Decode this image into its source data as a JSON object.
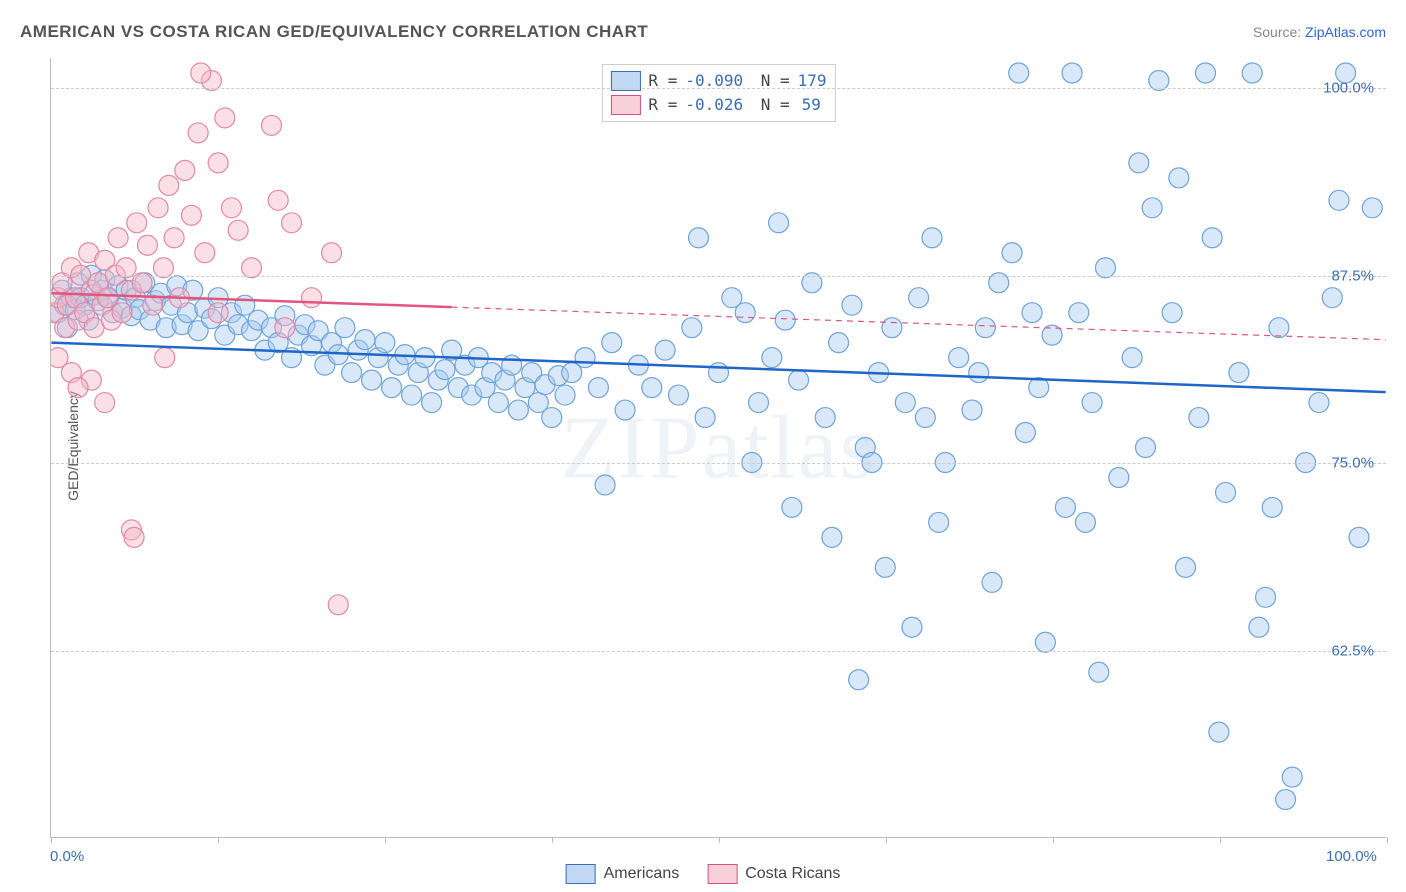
{
  "title": "AMERICAN VS COSTA RICAN GED/EQUIVALENCY CORRELATION CHART",
  "source_label": "Source:",
  "source_name": "ZipAtlas.com",
  "watermark": "ZIPatlas",
  "ylabel": "GED/Equivalency",
  "chart": {
    "type": "scatter",
    "background_color": "#ffffff",
    "grid_color": "#cccccc",
    "axis_color": "#bbbbbb",
    "xlim": [
      0,
      100
    ],
    "ylim": [
      50,
      102
    ],
    "x_ticks": [
      0,
      12.5,
      25,
      37.5,
      50,
      62.5,
      75,
      87.5,
      100
    ],
    "x_tick_labels_shown": {
      "0": "0.0%",
      "100": "100.0%"
    },
    "y_ticks": [
      62.5,
      75.0,
      87.5,
      100.0
    ],
    "y_tick_labels": [
      "62.5%",
      "75.0%",
      "87.5%",
      "100.0%"
    ],
    "marker_radius": 10,
    "marker_opacity": 0.45,
    "trend_line_width": 2.5,
    "series": [
      {
        "name": "Americans",
        "color_fill": "#a9cdef",
        "color_stroke": "#6fa3d9",
        "trend_color": "#1f66c9",
        "R": "-0.090",
        "N": "179",
        "trend": {
          "x0": 0,
          "y0": 83.0,
          "x1": 100,
          "y1": 79.7,
          "dash_after_x": null
        },
        "points": [
          [
            0.5,
            85.0
          ],
          [
            0.8,
            86.5
          ],
          [
            1.0,
            85.5
          ],
          [
            1.2,
            84.0
          ],
          [
            1.5,
            86.0
          ],
          [
            1.8,
            85.2
          ],
          [
            2.0,
            87.0
          ],
          [
            2.2,
            86.0
          ],
          [
            2.5,
            85.5
          ],
          [
            2.8,
            84.5
          ],
          [
            3.0,
            87.5
          ],
          [
            3.2,
            86.2
          ],
          [
            3.5,
            85.8
          ],
          [
            3.8,
            86.5
          ],
          [
            4.0,
            87.2
          ],
          [
            4.3,
            86.0
          ],
          [
            4.6,
            85.0
          ],
          [
            5.0,
            86.8
          ],
          [
            5.3,
            85.3
          ],
          [
            5.6,
            86.5
          ],
          [
            6.0,
            84.8
          ],
          [
            6.3,
            86.0
          ],
          [
            6.6,
            85.2
          ],
          [
            7.0,
            87.0
          ],
          [
            7.4,
            84.5
          ],
          [
            7.8,
            85.8
          ],
          [
            8.2,
            86.3
          ],
          [
            8.6,
            84.0
          ],
          [
            9.0,
            85.5
          ],
          [
            9.4,
            86.8
          ],
          [
            9.8,
            84.2
          ],
          [
            10.2,
            85.0
          ],
          [
            10.6,
            86.5
          ],
          [
            11.0,
            83.8
          ],
          [
            11.5,
            85.3
          ],
          [
            12.0,
            84.6
          ],
          [
            12.5,
            86.0
          ],
          [
            13.0,
            83.5
          ],
          [
            13.5,
            85.0
          ],
          [
            14.0,
            84.2
          ],
          [
            14.5,
            85.5
          ],
          [
            15.0,
            83.8
          ],
          [
            15.5,
            84.5
          ],
          [
            16.0,
            82.5
          ],
          [
            16.5,
            84.0
          ],
          [
            17.0,
            83.0
          ],
          [
            17.5,
            84.8
          ],
          [
            18.0,
            82.0
          ],
          [
            18.5,
            83.5
          ],
          [
            19.0,
            84.2
          ],
          [
            19.5,
            82.8
          ],
          [
            20.0,
            83.8
          ],
          [
            20.5,
            81.5
          ],
          [
            21.0,
            83.0
          ],
          [
            21.5,
            82.2
          ],
          [
            22.0,
            84.0
          ],
          [
            22.5,
            81.0
          ],
          [
            23.0,
            82.5
          ],
          [
            23.5,
            83.2
          ],
          [
            24.0,
            80.5
          ],
          [
            24.5,
            82.0
          ],
          [
            25.0,
            83.0
          ],
          [
            25.5,
            80.0
          ],
          [
            26.0,
            81.5
          ],
          [
            26.5,
            82.2
          ],
          [
            27.0,
            79.5
          ],
          [
            27.5,
            81.0
          ],
          [
            28.0,
            82.0
          ],
          [
            28.5,
            79.0
          ],
          [
            29.0,
            80.5
          ],
          [
            29.5,
            81.2
          ],
          [
            30.0,
            82.5
          ],
          [
            30.5,
            80.0
          ],
          [
            31.0,
            81.5
          ],
          [
            31.5,
            79.5
          ],
          [
            32.0,
            82.0
          ],
          [
            32.5,
            80.0
          ],
          [
            33.0,
            81.0
          ],
          [
            33.5,
            79.0
          ],
          [
            34.0,
            80.5
          ],
          [
            34.5,
            81.5
          ],
          [
            35.0,
            78.5
          ],
          [
            35.5,
            80.0
          ],
          [
            36.0,
            81.0
          ],
          [
            36.5,
            79.0
          ],
          [
            37.0,
            80.2
          ],
          [
            37.5,
            78.0
          ],
          [
            38.0,
            80.8
          ],
          [
            38.5,
            79.5
          ],
          [
            39.0,
            81.0
          ],
          [
            40.0,
            82.0
          ],
          [
            41.0,
            80.0
          ],
          [
            42.0,
            83.0
          ],
          [
            43.0,
            78.5
          ],
          [
            44.0,
            81.5
          ],
          [
            45.0,
            80.0
          ],
          [
            46.0,
            82.5
          ],
          [
            47.0,
            79.5
          ],
          [
            48.0,
            84.0
          ],
          [
            49.0,
            78.0
          ],
          [
            41.5,
            73.5
          ],
          [
            50.0,
            81.0
          ],
          [
            51.0,
            86.0
          ],
          [
            52.0,
            85.0
          ],
          [
            53.0,
            79.0
          ],
          [
            54.0,
            82.0
          ],
          [
            55.0,
            84.5
          ],
          [
            56.0,
            80.5
          ],
          [
            57.0,
            87.0
          ],
          [
            58.0,
            78.0
          ],
          [
            59.0,
            83.0
          ],
          [
            60.0,
            85.5
          ],
          [
            61.0,
            76.0
          ],
          [
            62.0,
            81.0
          ],
          [
            63.0,
            84.0
          ],
          [
            64.0,
            79.0
          ],
          [
            65.0,
            86.0
          ],
          [
            66.0,
            90.0
          ],
          [
            67.0,
            75.0
          ],
          [
            68.0,
            82.0
          ],
          [
            69.0,
            78.5
          ],
          [
            70.0,
            84.0
          ],
          [
            71.0,
            87.0
          ],
          [
            72.0,
            89.0
          ],
          [
            73.0,
            77.0
          ],
          [
            74.0,
            80.0
          ],
          [
            75.0,
            83.5
          ],
          [
            76.0,
            72.0
          ],
          [
            77.0,
            85.0
          ],
          [
            78.0,
            79.0
          ],
          [
            79.0,
            88.0
          ],
          [
            80.0,
            74.0
          ],
          [
            81.0,
            82.0
          ],
          [
            82.0,
            76.0
          ],
          [
            83.0,
            100.5
          ],
          [
            84.0,
            85.0
          ],
          [
            85.0,
            68.0
          ],
          [
            86.0,
            78.0
          ],
          [
            87.0,
            90.0
          ],
          [
            88.0,
            73.0
          ],
          [
            89.0,
            81.0
          ],
          [
            90.0,
            101.0
          ],
          [
            91.0,
            66.0
          ],
          [
            92.0,
            84.0
          ],
          [
            93.0,
            54.0
          ],
          [
            94.0,
            75.0
          ],
          [
            95.0,
            79.0
          ],
          [
            96.0,
            86.0
          ],
          [
            97.0,
            101.0
          ],
          [
            98.0,
            70.0
          ],
          [
            60.5,
            60.5
          ],
          [
            54.5,
            91.0
          ],
          [
            72.5,
            101.0
          ],
          [
            76.5,
            101.0
          ],
          [
            81.5,
            95.0
          ],
          [
            84.5,
            94.0
          ],
          [
            87.5,
            57.0
          ],
          [
            90.5,
            64.0
          ],
          [
            92.5,
            52.5
          ],
          [
            96.5,
            92.5
          ],
          [
            62.5,
            68.0
          ],
          [
            64.5,
            64.0
          ],
          [
            66.5,
            71.0
          ],
          [
            70.5,
            67.0
          ],
          [
            74.5,
            63.0
          ],
          [
            78.5,
            61.0
          ],
          [
            82.5,
            92.0
          ],
          [
            86.5,
            101.0
          ],
          [
            91.5,
            72.0
          ],
          [
            99.0,
            92.0
          ],
          [
            48.5,
            90.0
          ],
          [
            52.5,
            75.0
          ],
          [
            55.5,
            72.0
          ],
          [
            58.5,
            70.0
          ],
          [
            61.5,
            75.0
          ],
          [
            65.5,
            78.0
          ],
          [
            69.5,
            81.0
          ],
          [
            73.5,
            85.0
          ],
          [
            77.5,
            71.0
          ]
        ]
      },
      {
        "name": "Costa Ricans",
        "color_fill": "#f5b8c8",
        "color_stroke": "#e389a5",
        "trend_color": "#e0567f",
        "R": "-0.026",
        "N": "59",
        "trend": {
          "x0": 0,
          "y0": 86.3,
          "x1": 100,
          "y1": 83.2,
          "dash_after_x": 30
        },
        "points": [
          [
            0.2,
            85.0
          ],
          [
            0.5,
            86.0
          ],
          [
            0.8,
            87.0
          ],
          [
            1.0,
            84.0
          ],
          [
            1.2,
            85.5
          ],
          [
            1.5,
            88.0
          ],
          [
            1.8,
            86.0
          ],
          [
            2.0,
            84.5
          ],
          [
            2.2,
            87.5
          ],
          [
            2.5,
            85.0
          ],
          [
            2.8,
            89.0
          ],
          [
            3.0,
            86.5
          ],
          [
            3.2,
            84.0
          ],
          [
            3.5,
            87.0
          ],
          [
            3.8,
            85.5
          ],
          [
            4.0,
            88.5
          ],
          [
            4.2,
            86.0
          ],
          [
            4.5,
            84.5
          ],
          [
            4.8,
            87.5
          ],
          [
            5.0,
            90.0
          ],
          [
            5.3,
            85.0
          ],
          [
            5.6,
            88.0
          ],
          [
            6.0,
            86.5
          ],
          [
            6.4,
            91.0
          ],
          [
            6.8,
            87.0
          ],
          [
            7.2,
            89.5
          ],
          [
            7.6,
            85.5
          ],
          [
            8.0,
            92.0
          ],
          [
            8.4,
            88.0
          ],
          [
            8.8,
            93.5
          ],
          [
            9.2,
            90.0
          ],
          [
            9.6,
            86.0
          ],
          [
            10.0,
            94.5
          ],
          [
            10.5,
            91.5
          ],
          [
            11.0,
            97.0
          ],
          [
            11.5,
            89.0
          ],
          [
            12.0,
            100.5
          ],
          [
            12.5,
            95.0
          ],
          [
            13.0,
            98.0
          ],
          [
            13.5,
            92.0
          ],
          [
            14.0,
            90.5
          ],
          [
            15.0,
            88.0
          ],
          [
            16.5,
            97.5
          ],
          [
            17.5,
            84.0
          ],
          [
            18.0,
            91.0
          ],
          [
            19.5,
            86.0
          ],
          [
            21.0,
            89.0
          ],
          [
            3.0,
            80.5
          ],
          [
            4.0,
            79.0
          ],
          [
            6.0,
            70.5
          ],
          [
            6.2,
            70.0
          ],
          [
            0.5,
            82.0
          ],
          [
            1.5,
            81.0
          ],
          [
            2.0,
            80.0
          ],
          [
            8.5,
            82.0
          ],
          [
            12.5,
            85.0
          ],
          [
            21.5,
            65.5
          ],
          [
            17.0,
            92.5
          ],
          [
            11.2,
            101.0
          ]
        ]
      }
    ]
  },
  "legend_labels": {
    "americans": "Americans",
    "costa_ricans": "Costa Ricans"
  },
  "axis_label_color": "#3b6db5",
  "title_color": "#555555"
}
